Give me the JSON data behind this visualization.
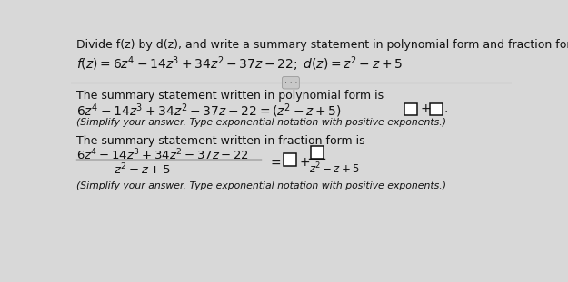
{
  "bg_color": "#d8d8d8",
  "text_color": "#111111",
  "box_edge_color": "#111111",
  "box_face_color": "#ffffff",
  "sep_color": "#888888",
  "dot_bg": "#cccccc",
  "title": "Divide f(z) by d(z), and write a summary statement in polynomial form and fraction form.",
  "fz_math": "$f(z)=6z^4-14z^3+34z^2-37z-22;\\;d(z)=z^2-z+5$",
  "poly_header": "The summary statement written in polynomial form is",
  "poly_eq": "$6z^4-14z^3+34z^2-37z-22=\\left(z^2-z+5\\right)$",
  "plus": "$+$",
  "period": "$.$",
  "simplify": "(Simplify your answer. Type exponential notation with positive exponents.)",
  "frac_header": "The summary statement written in fraction form is",
  "frac_num": "$6z^4-14z^3+34z^2-37z-22$",
  "frac_den": "$z^2-z+5$",
  "equals": "$=$",
  "frac_den2": "$z^2-z+5$"
}
